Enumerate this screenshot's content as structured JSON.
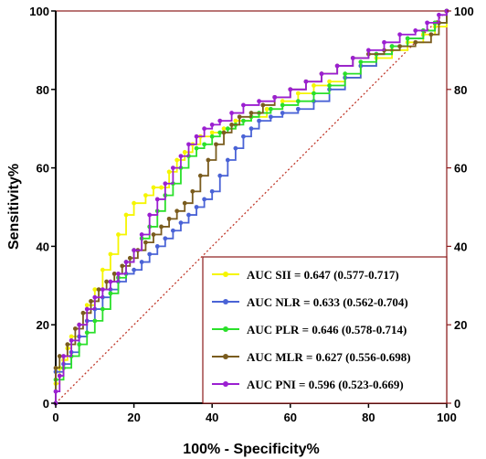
{
  "chart_data": {
    "type": "line",
    "title": "",
    "xlabel": "100% - Specificity%",
    "ylabel": "Sensitivity%",
    "xlim": [
      0,
      100
    ],
    "ylim": [
      0,
      100
    ],
    "x_ticks": [
      "0",
      "20",
      "40",
      "60",
      "80",
      "100"
    ],
    "y_ticks": [
      "0",
      "20",
      "40",
      "60",
      "80",
      "100"
    ],
    "right_y_ticks": [
      "0",
      "20",
      "40",
      "60",
      "80",
      "100"
    ],
    "grid": false,
    "legend_position": "bottom-right",
    "frame_color": "#8b1a1a",
    "reference_line": {
      "from": [
        0,
        0
      ],
      "to": [
        100,
        100
      ],
      "color": "#c0392b",
      "style": "dotted"
    },
    "series": [
      {
        "name": "AUC SII = 0.647 (0.577-0.717)",
        "color": "#f5f500",
        "points": [
          [
            0,
            0
          ],
          [
            0,
            5
          ],
          [
            1,
            9
          ],
          [
            2,
            11
          ],
          [
            3,
            14
          ],
          [
            4,
            17
          ],
          [
            6,
            20
          ],
          [
            8,
            25
          ],
          [
            10,
            29
          ],
          [
            12,
            34
          ],
          [
            14,
            38
          ],
          [
            16,
            43
          ],
          [
            18,
            48
          ],
          [
            20,
            51
          ],
          [
            23,
            53
          ],
          [
            25,
            55
          ],
          [
            27,
            55
          ],
          [
            29,
            59
          ],
          [
            31,
            62
          ],
          [
            33,
            64
          ],
          [
            35,
            66
          ],
          [
            37,
            68
          ],
          [
            40,
            69
          ],
          [
            43,
            70
          ],
          [
            46,
            72
          ],
          [
            50,
            73
          ],
          [
            54,
            75
          ],
          [
            58,
            77
          ],
          [
            62,
            79
          ],
          [
            66,
            81
          ],
          [
            70,
            82
          ],
          [
            74,
            83
          ],
          [
            78,
            86
          ],
          [
            82,
            88
          ],
          [
            86,
            90
          ],
          [
            90,
            92
          ],
          [
            94,
            94
          ],
          [
            97,
            96
          ],
          [
            100,
            100
          ]
        ]
      },
      {
        "name": "AUC NLR = 0.633 (0.562-0.704)",
        "color": "#4a63d6",
        "points": [
          [
            0,
            0
          ],
          [
            0,
            8
          ],
          [
            2,
            10
          ],
          [
            4,
            13
          ],
          [
            6,
            17
          ],
          [
            8,
            21
          ],
          [
            10,
            24
          ],
          [
            12,
            27
          ],
          [
            14,
            29
          ],
          [
            16,
            31
          ],
          [
            18,
            33
          ],
          [
            20,
            34
          ],
          [
            22,
            36
          ],
          [
            24,
            38
          ],
          [
            26,
            40
          ],
          [
            28,
            42
          ],
          [
            30,
            44
          ],
          [
            32,
            46
          ],
          [
            34,
            48
          ],
          [
            36,
            50
          ],
          [
            38,
            52
          ],
          [
            40,
            54
          ],
          [
            42,
            58
          ],
          [
            44,
            62
          ],
          [
            46,
            65
          ],
          [
            48,
            68
          ],
          [
            50,
            70
          ],
          [
            52,
            72
          ],
          [
            55,
            73
          ],
          [
            58,
            74
          ],
          [
            62,
            75
          ],
          [
            66,
            77
          ],
          [
            70,
            80
          ],
          [
            74,
            83
          ],
          [
            78,
            86
          ],
          [
            82,
            89
          ],
          [
            86,
            91
          ],
          [
            90,
            93
          ],
          [
            94,
            95
          ],
          [
            97,
            97
          ],
          [
            100,
            100
          ]
        ]
      },
      {
        "name": "AUC PLR = 0.646 (0.578-0.714)",
        "color": "#2ae02a",
        "points": [
          [
            0,
            0
          ],
          [
            0,
            6
          ],
          [
            2,
            9
          ],
          [
            4,
            12
          ],
          [
            6,
            15
          ],
          [
            8,
            18
          ],
          [
            10,
            21
          ],
          [
            12,
            24
          ],
          [
            14,
            28
          ],
          [
            16,
            32
          ],
          [
            18,
            36
          ],
          [
            20,
            39
          ],
          [
            22,
            42
          ],
          [
            24,
            45
          ],
          [
            26,
            49
          ],
          [
            28,
            53
          ],
          [
            30,
            56
          ],
          [
            32,
            60
          ],
          [
            34,
            63
          ],
          [
            36,
            65
          ],
          [
            38,
            66
          ],
          [
            40,
            68
          ],
          [
            42,
            69
          ],
          [
            44,
            70
          ],
          [
            46,
            71
          ],
          [
            48,
            72
          ],
          [
            50,
            73
          ],
          [
            52,
            74
          ],
          [
            55,
            75
          ],
          [
            58,
            76
          ],
          [
            62,
            77
          ],
          [
            66,
            79
          ],
          [
            70,
            81
          ],
          [
            74,
            84
          ],
          [
            78,
            87
          ],
          [
            82,
            89
          ],
          [
            86,
            91
          ],
          [
            90,
            93
          ],
          [
            94,
            95
          ],
          [
            97,
            97
          ],
          [
            100,
            100
          ]
        ]
      },
      {
        "name": "AUC MLR = 0.627 (0.556-0.698)",
        "color": "#7a5c1e",
        "points": [
          [
            0,
            0
          ],
          [
            0,
            9
          ],
          [
            1,
            12
          ],
          [
            3,
            15
          ],
          [
            5,
            19
          ],
          [
            7,
            23
          ],
          [
            9,
            26
          ],
          [
            11,
            29
          ],
          [
            13,
            31
          ],
          [
            15,
            33
          ],
          [
            17,
            35
          ],
          [
            19,
            37
          ],
          [
            21,
            39
          ],
          [
            23,
            41
          ],
          [
            25,
            43
          ],
          [
            27,
            45
          ],
          [
            29,
            47
          ],
          [
            31,
            49
          ],
          [
            33,
            51
          ],
          [
            35,
            54
          ],
          [
            37,
            58
          ],
          [
            39,
            62
          ],
          [
            41,
            66
          ],
          [
            43,
            69
          ],
          [
            45,
            71
          ],
          [
            47,
            73
          ],
          [
            50,
            74
          ],
          [
            53,
            76
          ],
          [
            56,
            78
          ],
          [
            60,
            80
          ],
          [
            64,
            82
          ],
          [
            68,
            84
          ],
          [
            72,
            86
          ],
          [
            76,
            88
          ],
          [
            80,
            89
          ],
          [
            84,
            90
          ],
          [
            88,
            91
          ],
          [
            92,
            92
          ],
          [
            96,
            94
          ],
          [
            98,
            97
          ],
          [
            100,
            100
          ]
        ]
      },
      {
        "name": "AUC PNI = 0.596 (0.523-0.669)",
        "color": "#9b1fd1",
        "points": [
          [
            0,
            0
          ],
          [
            0,
            3
          ],
          [
            1,
            7
          ],
          [
            2,
            12
          ],
          [
            4,
            16
          ],
          [
            6,
            20
          ],
          [
            8,
            24
          ],
          [
            10,
            27
          ],
          [
            12,
            29
          ],
          [
            14,
            31
          ],
          [
            16,
            33
          ],
          [
            18,
            36
          ],
          [
            20,
            39
          ],
          [
            22,
            43
          ],
          [
            24,
            48
          ],
          [
            26,
            52
          ],
          [
            28,
            56
          ],
          [
            30,
            60
          ],
          [
            32,
            63
          ],
          [
            34,
            66
          ],
          [
            36,
            68
          ],
          [
            38,
            70
          ],
          [
            40,
            71
          ],
          [
            42,
            72
          ],
          [
            45,
            74
          ],
          [
            48,
            76
          ],
          [
            52,
            77
          ],
          [
            56,
            78
          ],
          [
            60,
            80
          ],
          [
            64,
            82
          ],
          [
            68,
            84
          ],
          [
            72,
            86
          ],
          [
            76,
            88
          ],
          [
            80,
            90
          ],
          [
            84,
            92
          ],
          [
            88,
            94
          ],
          [
            92,
            95
          ],
          [
            95,
            97
          ],
          [
            98,
            99
          ],
          [
            100,
            100
          ]
        ]
      }
    ]
  }
}
